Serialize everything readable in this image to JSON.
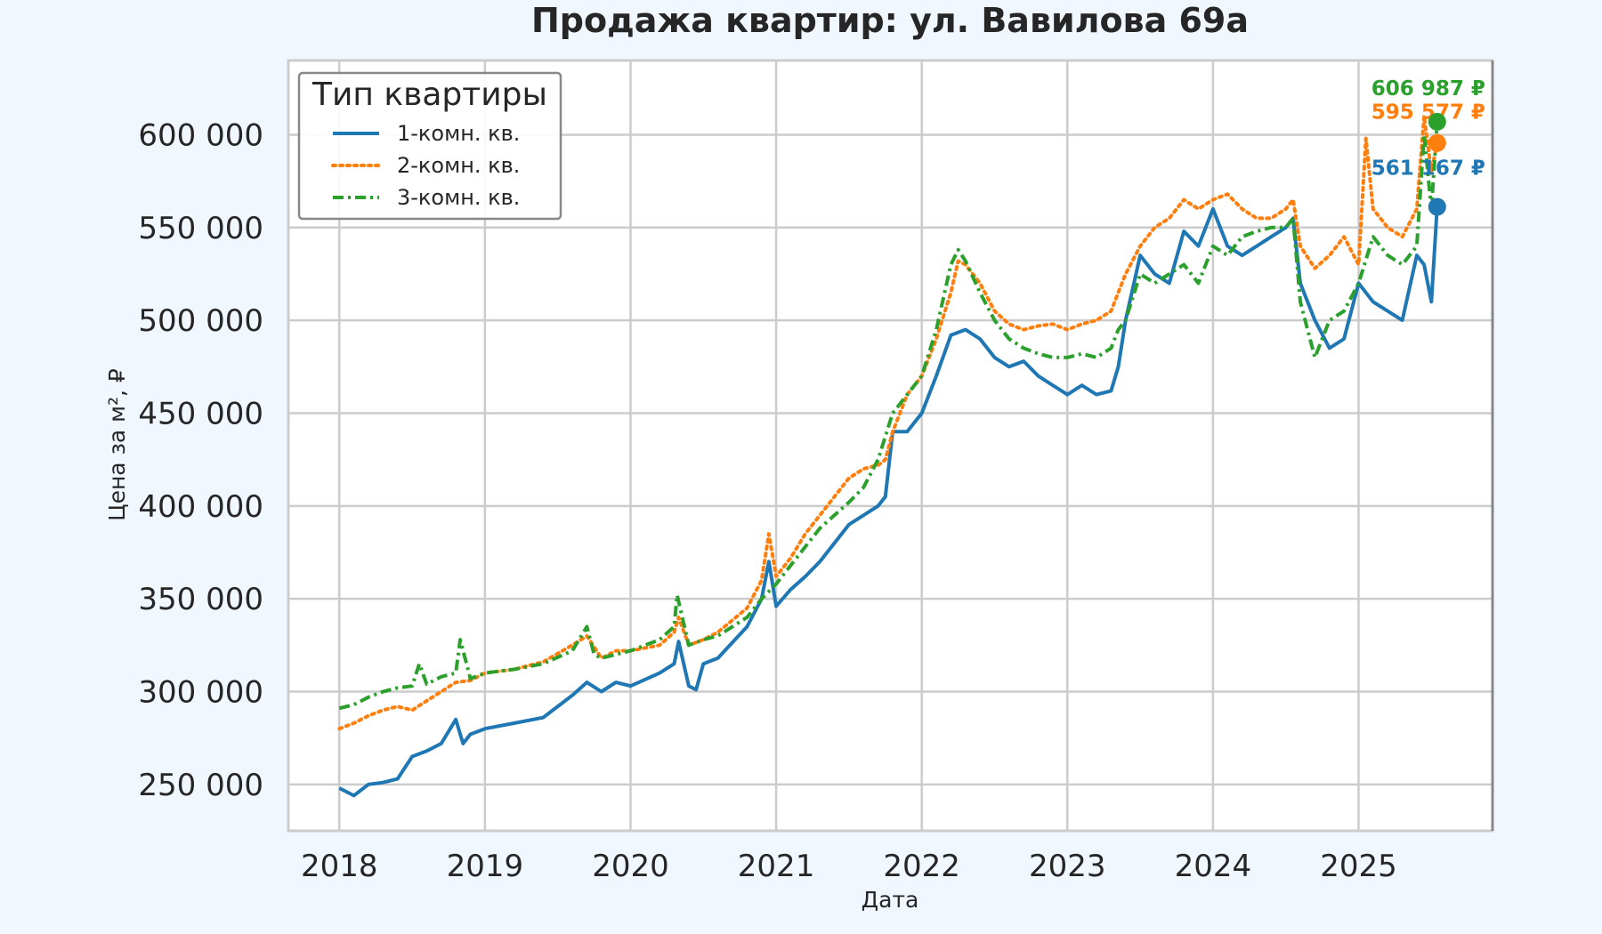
{
  "chart_data": {
    "type": "line",
    "title": "Продажа квартир: ул. Вавилова 69а",
    "xlabel": "Дата",
    "ylabel": "Цена за м², ₽",
    "xlim": [
      2017.65,
      2025.92
    ],
    "ylim": [
      225000,
      640000
    ],
    "xticks": [
      2018,
      2019,
      2020,
      2021,
      2022,
      2023,
      2024,
      2025
    ],
    "xtick_labels": [
      "2018",
      "2019",
      "2020",
      "2021",
      "2022",
      "2023",
      "2024",
      "2025"
    ],
    "yticks": [
      250000,
      300000,
      350000,
      400000,
      450000,
      500000,
      550000,
      600000
    ],
    "ytick_labels": [
      "250 000",
      "300 000",
      "350 000",
      "400 000",
      "450 000",
      "500 000",
      "550 000",
      "600 000"
    ],
    "grid": true,
    "legend": {
      "title": "Тип квартиры",
      "placement": "top-left"
    },
    "series": [
      {
        "name": "1-комн. кв.",
        "color": "#1f77b4",
        "dash": "solid",
        "end_label": "561 167 ₽",
        "end_point": [
          2025.54,
          561167
        ],
        "x": [
          2018.0,
          2018.1,
          2018.2,
          2018.3,
          2018.4,
          2018.5,
          2018.6,
          2018.7,
          2018.8,
          2018.85,
          2018.9,
          2019.0,
          2019.2,
          2019.4,
          2019.6,
          2019.7,
          2019.8,
          2019.9,
          2020.0,
          2020.2,
          2020.3,
          2020.33,
          2020.4,
          2020.45,
          2020.5,
          2020.6,
          2020.8,
          2020.9,
          2020.95,
          2021.0,
          2021.1,
          2021.2,
          2021.3,
          2021.4,
          2021.5,
          2021.6,
          2021.7,
          2021.75,
          2021.8,
          2021.9,
          2022.0,
          2022.1,
          2022.2,
          2022.3,
          2022.4,
          2022.5,
          2022.6,
          2022.7,
          2022.8,
          2022.9,
          2023.0,
          2023.1,
          2023.2,
          2023.3,
          2023.35,
          2023.4,
          2023.5,
          2023.6,
          2023.7,
          2023.8,
          2023.9,
          2024.0,
          2024.1,
          2024.2,
          2024.3,
          2024.4,
          2024.5,
          2024.55,
          2024.6,
          2024.7,
          2024.8,
          2024.9,
          2025.0,
          2025.1,
          2025.2,
          2025.3,
          2025.4,
          2025.45,
          2025.5,
          2025.54
        ],
        "y": [
          248000,
          244000,
          250000,
          251000,
          253000,
          265000,
          268000,
          272000,
          285000,
          272000,
          277000,
          280000,
          283000,
          286000,
          298000,
          305000,
          300000,
          305000,
          303000,
          310000,
          315000,
          327000,
          303000,
          301000,
          315000,
          318000,
          335000,
          350000,
          370000,
          346000,
          355000,
          362000,
          370000,
          380000,
          390000,
          395000,
          400000,
          405000,
          440000,
          440000,
          450000,
          470000,
          492000,
          495000,
          490000,
          480000,
          475000,
          478000,
          470000,
          465000,
          460000,
          465000,
          460000,
          462000,
          475000,
          500000,
          535000,
          525000,
          520000,
          548000,
          540000,
          560000,
          540000,
          535000,
          540000,
          545000,
          550000,
          555000,
          520000,
          500000,
          485000,
          490000,
          520000,
          510000,
          505000,
          500000,
          535000,
          530000,
          510000,
          561167
        ]
      },
      {
        "name": "2-комн. кв.",
        "color": "#ff7f0e",
        "dash": "dotted",
        "end_label": "595 577 ₽",
        "end_point": [
          2025.54,
          595577
        ],
        "x": [
          2018.0,
          2018.1,
          2018.2,
          2018.3,
          2018.4,
          2018.5,
          2018.6,
          2018.7,
          2018.8,
          2018.9,
          2019.0,
          2019.2,
          2019.4,
          2019.6,
          2019.7,
          2019.8,
          2019.9,
          2020.0,
          2020.2,
          2020.3,
          2020.33,
          2020.4,
          2020.5,
          2020.6,
          2020.8,
          2020.9,
          2020.95,
          2021.0,
          2021.1,
          2021.2,
          2021.3,
          2021.4,
          2021.5,
          2021.6,
          2021.7,
          2021.75,
          2021.8,
          2021.9,
          2022.0,
          2022.1,
          2022.2,
          2022.25,
          2022.3,
          2022.4,
          2022.5,
          2022.6,
          2022.7,
          2022.8,
          2022.9,
          2023.0,
          2023.1,
          2023.2,
          2023.3,
          2023.35,
          2023.4,
          2023.5,
          2023.6,
          2023.7,
          2023.8,
          2023.9,
          2024.0,
          2024.1,
          2024.2,
          2024.3,
          2024.4,
          2024.5,
          2024.55,
          2024.6,
          2024.7,
          2024.8,
          2024.9,
          2025.0,
          2025.05,
          2025.1,
          2025.2,
          2025.3,
          2025.4,
          2025.45,
          2025.5,
          2025.54
        ],
        "y": [
          280000,
          283000,
          287000,
          290000,
          292000,
          290000,
          295000,
          300000,
          305000,
          306000,
          310000,
          312000,
          316000,
          325000,
          330000,
          318000,
          322000,
          322000,
          325000,
          332000,
          340000,
          325000,
          328000,
          332000,
          345000,
          360000,
          385000,
          362000,
          372000,
          385000,
          395000,
          405000,
          415000,
          420000,
          422000,
          425000,
          440000,
          460000,
          470000,
          490000,
          515000,
          532000,
          530000,
          520000,
          505000,
          498000,
          495000,
          497000,
          498000,
          495000,
          498000,
          500000,
          505000,
          515000,
          525000,
          540000,
          550000,
          555000,
          565000,
          560000,
          565000,
          568000,
          560000,
          555000,
          555000,
          560000,
          565000,
          540000,
          528000,
          535000,
          545000,
          530000,
          598000,
          560000,
          550000,
          545000,
          560000,
          610000,
          580000,
          595577
        ]
      },
      {
        "name": "3-комн. кв.",
        "color": "#2ca02c",
        "dash": "dashdot",
        "end_label": "606 987 ₽",
        "end_point": [
          2025.54,
          606987
        ],
        "x": [
          2018.0,
          2018.1,
          2018.2,
          2018.3,
          2018.4,
          2018.5,
          2018.55,
          2018.6,
          2018.7,
          2018.8,
          2018.83,
          2018.9,
          2019.0,
          2019.2,
          2019.4,
          2019.6,
          2019.7,
          2019.75,
          2019.8,
          2019.9,
          2020.0,
          2020.2,
          2020.3,
          2020.32,
          2020.4,
          2020.5,
          2020.6,
          2020.8,
          2020.9,
          2021.0,
          2021.1,
          2021.2,
          2021.3,
          2021.4,
          2021.5,
          2021.6,
          2021.7,
          2021.8,
          2021.9,
          2022.0,
          2022.1,
          2022.2,
          2022.25,
          2022.3,
          2022.4,
          2022.5,
          2022.6,
          2022.7,
          2022.8,
          2022.9,
          2023.0,
          2023.1,
          2023.2,
          2023.3,
          2023.35,
          2023.4,
          2023.5,
          2023.6,
          2023.7,
          2023.8,
          2023.9,
          2024.0,
          2024.1,
          2024.2,
          2024.3,
          2024.4,
          2024.5,
          2024.55,
          2024.6,
          2024.7,
          2024.8,
          2024.9,
          2025.0,
          2025.1,
          2025.2,
          2025.3,
          2025.4,
          2025.45,
          2025.5,
          2025.54
        ],
        "y": [
          291000,
          293000,
          297000,
          300000,
          302000,
          303000,
          315000,
          304000,
          308000,
          310000,
          328000,
          307000,
          310000,
          312000,
          315000,
          322000,
          335000,
          320000,
          318000,
          320000,
          322000,
          328000,
          335000,
          352000,
          325000,
          328000,
          330000,
          340000,
          350000,
          358000,
          368000,
          378000,
          388000,
          395000,
          402000,
          410000,
          425000,
          450000,
          460000,
          470000,
          495000,
          530000,
          538000,
          532000,
          515000,
          500000,
          490000,
          485000,
          482000,
          480000,
          480000,
          482000,
          480000,
          485000,
          495000,
          500000,
          525000,
          520000,
          525000,
          530000,
          520000,
          540000,
          535000,
          545000,
          548000,
          550000,
          550000,
          555000,
          510000,
          480000,
          500000,
          505000,
          520000,
          545000,
          535000,
          530000,
          540000,
          600000,
          560000,
          606987
        ]
      }
    ]
  }
}
